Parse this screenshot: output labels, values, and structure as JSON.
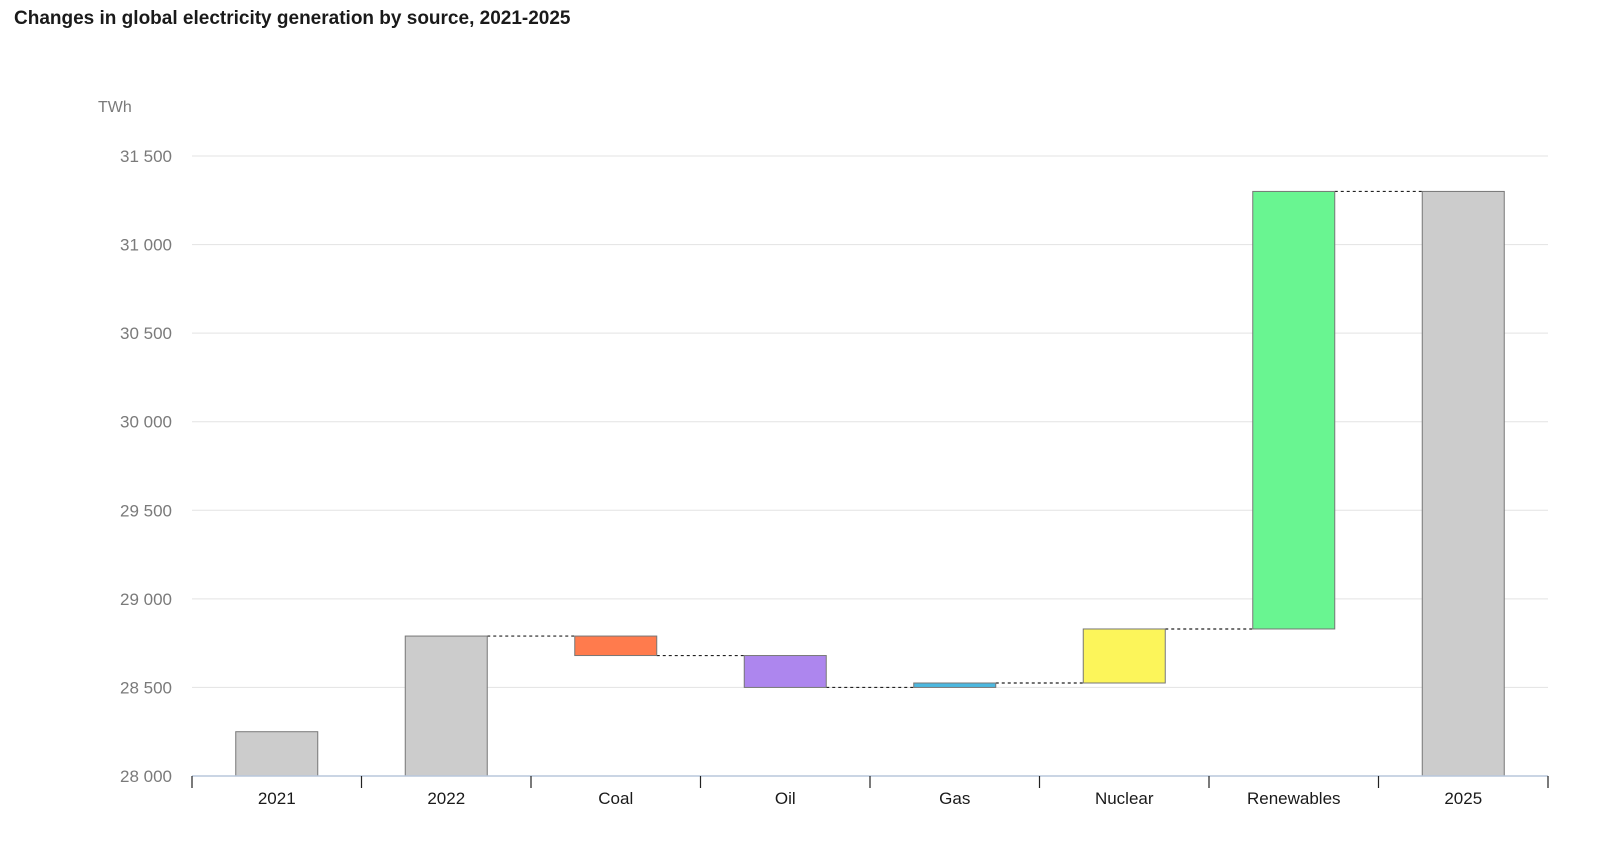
{
  "chart_data": {
    "type": "bar",
    "subtype": "waterfall",
    "title": "Changes in global electricity generation by source, 2021-2025",
    "ylabel": "TWh",
    "ylim": [
      28000,
      31500
    ],
    "yticks": [
      28000,
      28500,
      29000,
      29500,
      30000,
      30500,
      31000,
      31500
    ],
    "ytick_labels": [
      "28 000",
      "28 500",
      "29 000",
      "29 500",
      "30 000",
      "30 500",
      "31 000",
      "31 500"
    ],
    "grid": true,
    "categories": [
      "2021",
      "2022",
      "Coal",
      "Oil",
      "Gas",
      "Nuclear",
      "Renewables",
      "2025"
    ],
    "bars": [
      {
        "category": "2021",
        "kind": "total",
        "start": 28000,
        "end": 28250,
        "color": "#cccccc"
      },
      {
        "category": "2022",
        "kind": "total",
        "start": 28000,
        "end": 28790,
        "color": "#cccccc"
      },
      {
        "category": "Coal",
        "kind": "change",
        "start": 28790,
        "end": 28680,
        "color": "#ff7b4d"
      },
      {
        "category": "Oil",
        "kind": "change",
        "start": 28680,
        "end": 28500,
        "color": "#ad86ee"
      },
      {
        "category": "Gas",
        "kind": "change",
        "start": 28500,
        "end": 28525,
        "color": "#4cb8e0"
      },
      {
        "category": "Nuclear",
        "kind": "change",
        "start": 28525,
        "end": 28830,
        "color": "#fcf55a"
      },
      {
        "category": "Renewables",
        "kind": "change",
        "start": 28830,
        "end": 31300,
        "color": "#69f591"
      },
      {
        "category": "2025",
        "kind": "total",
        "start": 28000,
        "end": 31300,
        "color": "#cccccc"
      }
    ]
  }
}
